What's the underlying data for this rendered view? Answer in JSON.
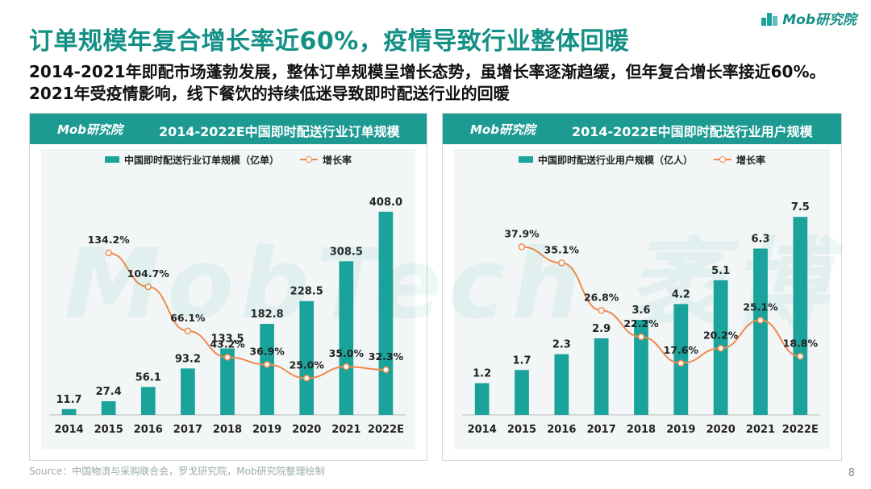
{
  "brand": "Mob研究院",
  "title": "订单规模年复合增长率近60%，疫情导致行业整体回暖",
  "subtitle": "2014-2021年即配市场蓬勃发展，整体订单规模呈增长态势，虽增长率逐渐趋缓，但年复合增长率接近60%。2021年受疫情影响，线下餐饮的持续低迷导致即时配送行业的回暖",
  "watermark": "MobTech 袤博",
  "source": "Source：中国物流与采购联合会，罗戈研究院，Mob研究院整理绘制",
  "page_number": "8",
  "colors": {
    "accent": "#139086",
    "bar": "#1aa39b",
    "line": "#f08a4b",
    "panel_head": "#1d9a92"
  },
  "chart_data": [
    {
      "type": "bar",
      "title": "2014-2022E中国即时配送行业订单规模",
      "categories": [
        "2014",
        "2015",
        "2016",
        "2017",
        "2018",
        "2019",
        "2020",
        "2021",
        "2022E"
      ],
      "series": [
        {
          "name": "中国即时配送行业订单规模（亿单）",
          "type": "bar",
          "values": [
            11.7,
            27.4,
            56.1,
            93.2,
            133.5,
            182.8,
            228.5,
            308.5,
            408.0
          ],
          "labels": [
            "11.7",
            "27.4",
            "56.1",
            "93.2",
            "133.5",
            "182.8",
            "228.5",
            "308.5",
            "408.0"
          ]
        },
        {
          "name": "增长率",
          "type": "line",
          "values": [
            null,
            134.2,
            104.7,
            66.1,
            43.2,
            36.9,
            25.0,
            35.0,
            32.3
          ],
          "labels": [
            "",
            "134.2%",
            "104.7%",
            "66.1%",
            "43.2%",
            "36.9%",
            "25.0%",
            "35.0%",
            "32.3%"
          ]
        }
      ],
      "ylim": [
        0,
        440
      ],
      "rate_lim": [
        0,
        170
      ]
    },
    {
      "type": "bar",
      "title": "2014-2022E中国即时配送行业用户规模",
      "categories": [
        "2014",
        "2015",
        "2016",
        "2017",
        "2018",
        "2019",
        "2020",
        "2021",
        "2022E"
      ],
      "series": [
        {
          "name": "中国即时配送行业用户规模（亿人）",
          "type": "bar",
          "values": [
            1.2,
            1.7,
            2.3,
            2.9,
            3.6,
            4.2,
            5.1,
            6.3,
            7.5
          ],
          "labels": [
            "1.2",
            "1.7",
            "2.3",
            "2.9",
            "3.6",
            "4.2",
            "5.1",
            "6.3",
            "7.5"
          ]
        },
        {
          "name": "增长率",
          "type": "line",
          "values": [
            null,
            37.9,
            35.1,
            26.8,
            22.2,
            17.6,
            20.2,
            25.1,
            18.8
          ],
          "labels": [
            "",
            "37.9%",
            "35.1%",
            "26.8%",
            "22.2%",
            "17.6%",
            "20.2%",
            "25.1%",
            "18.8%"
          ]
        }
      ],
      "ylim": [
        0,
        8.3
      ],
      "rate_lim": [
        10,
        44
      ]
    }
  ]
}
